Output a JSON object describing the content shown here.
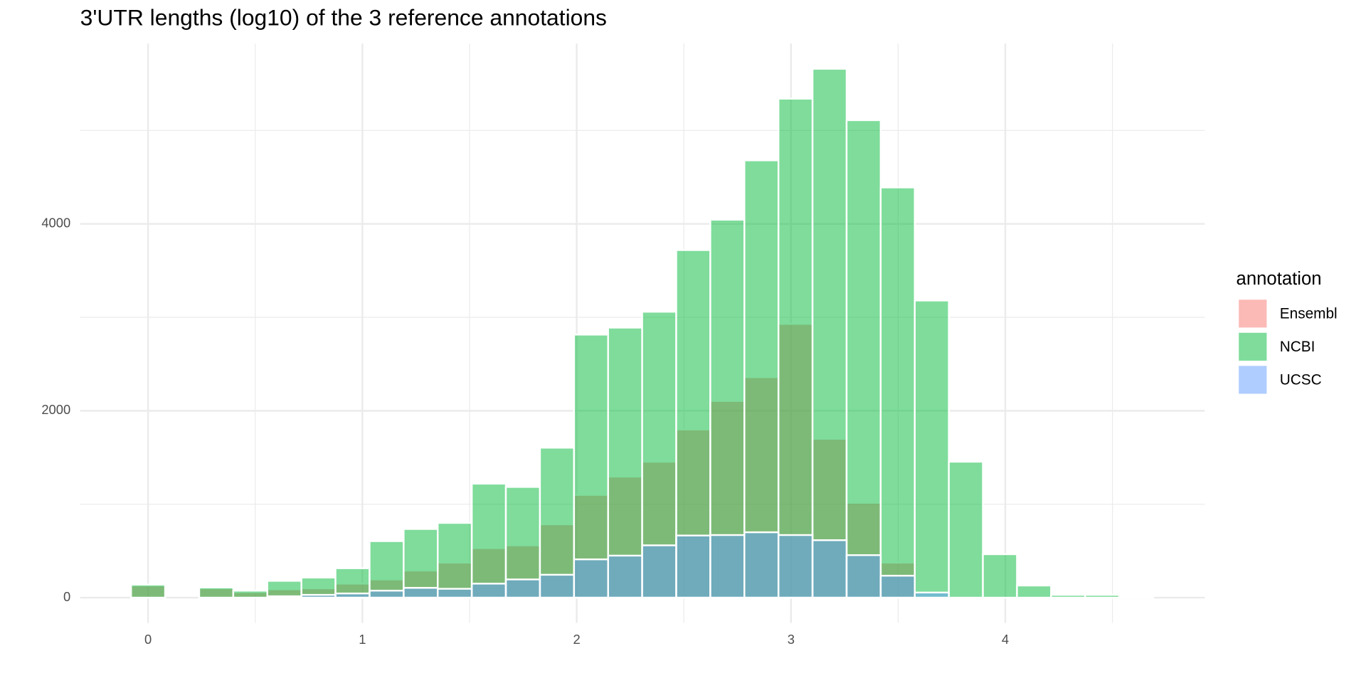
{
  "chart_data": {
    "type": "histogram",
    "title": "3'UTR lengths (log10) of the 3 reference annotations",
    "legend_title": "annotation",
    "legend_position": "right",
    "grid": true,
    "opacity": 0.5,
    "bins": [
      -0.0795,
      0.0795,
      0.2385,
      0.3975,
      0.5565,
      0.7155,
      0.8745,
      1.0335,
      1.1925,
      1.3515,
      1.5105,
      1.6695,
      1.8285,
      1.9875,
      2.1465,
      2.3055,
      2.4645,
      2.6235,
      2.7825,
      2.9415,
      3.1005,
      3.2595,
      3.4185,
      3.5775,
      3.7365,
      3.8955,
      4.0545,
      4.2135,
      4.3725,
      4.5315,
      4.6905
    ],
    "series": [
      {
        "name": "Ensembl",
        "color": "#F8766D",
        "values": [
          130,
          0,
          100,
          60,
          90,
          100,
          150,
          195,
          290,
          375,
          530,
          560,
          785,
          1100,
          1295,
          1455,
          1800,
          2105,
          2360,
          2930,
          1700,
          1015,
          375,
          0,
          0,
          0,
          0,
          0,
          0,
          0
        ]
      },
      {
        "name": "NCBI",
        "color": "#00BA38",
        "values": [
          140,
          0,
          110,
          75,
          180,
          215,
          315,
          605,
          735,
          800,
          1220,
          1185,
          1605,
          2815,
          2890,
          3060,
          3720,
          4045,
          4680,
          5340,
          5660,
          5110,
          4390,
          3180,
          1455,
          465,
          130,
          30,
          30,
          10
        ]
      },
      {
        "name": "UCSC",
        "color": "#619CFF",
        "values": [
          0,
          0,
          0,
          0,
          15,
          30,
          45,
          75,
          105,
          95,
          150,
          195,
          245,
          410,
          450,
          560,
          665,
          670,
          700,
          670,
          615,
          455,
          235,
          55,
          0,
          0,
          0,
          0,
          0,
          0
        ]
      }
    ],
    "xlim": [
      -0.317,
      4.931
    ],
    "xticks": [
      0,
      1,
      2,
      3,
      4
    ],
    "x_minor_grid": [
      0.5,
      1.5,
      2.5,
      3.5,
      4.5
    ],
    "ylim": [
      -270,
      5930
    ],
    "yticks": [
      0,
      2000,
      4000
    ],
    "y_minor_grid": [
      1000,
      3000,
      5000
    ]
  }
}
